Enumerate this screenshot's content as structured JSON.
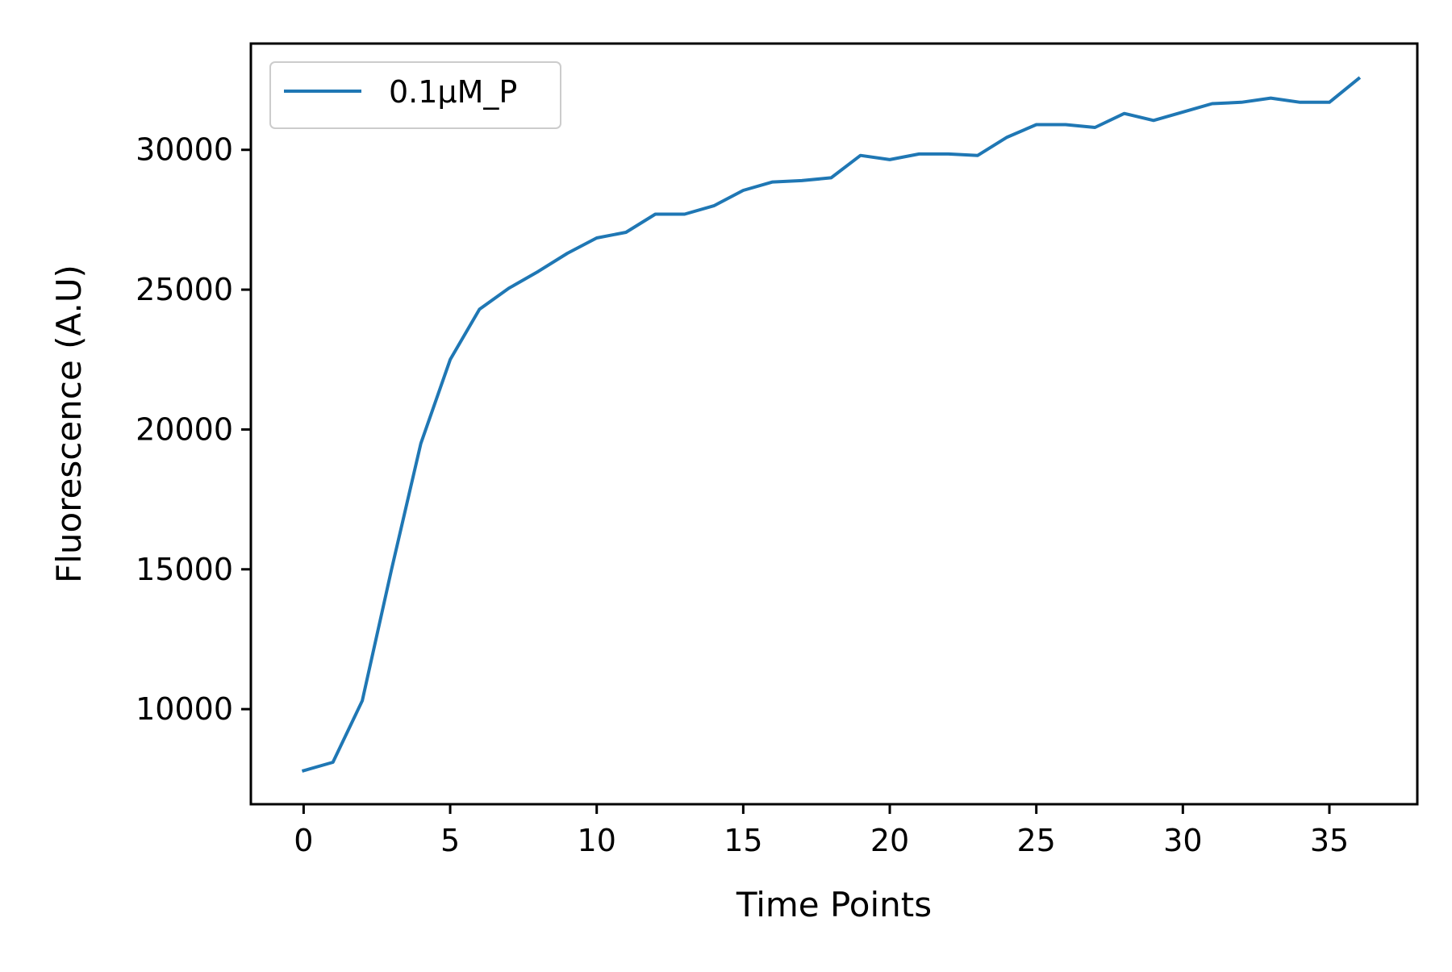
{
  "chart_data": {
    "type": "line",
    "title": "",
    "xlabel": "Time Points",
    "ylabel": "Fluorescence (A.U)",
    "xlim": [
      -1.8,
      38.0
    ],
    "ylim": [
      6600,
      33800
    ],
    "xticks": [
      0,
      5,
      10,
      15,
      20,
      25,
      30,
      35
    ],
    "yticks": [
      10000,
      15000,
      20000,
      25000,
      30000
    ],
    "grid": false,
    "legend_position": "upper-left",
    "series": [
      {
        "name": "0.1μM_P",
        "color": "#1f77b4",
        "x": [
          0,
          1,
          2,
          3,
          4,
          5,
          6,
          7,
          8,
          9,
          10,
          11,
          12,
          13,
          14,
          15,
          16,
          17,
          18,
          19,
          20,
          21,
          22,
          23,
          24,
          25,
          26,
          27,
          28,
          29,
          30,
          31,
          32,
          33,
          34,
          35,
          36
        ],
        "y": [
          7800,
          8100,
          10300,
          15000,
          19500,
          22500,
          24300,
          25050,
          25650,
          26300,
          26850,
          27050,
          27700,
          27700,
          28000,
          28550,
          28850,
          28900,
          29000,
          29800,
          29650,
          29850,
          29850,
          29800,
          30450,
          30900,
          30900,
          30800,
          31300,
          31050,
          31350,
          31650,
          31700,
          31850,
          31700,
          31700,
          32550
        ]
      }
    ]
  }
}
